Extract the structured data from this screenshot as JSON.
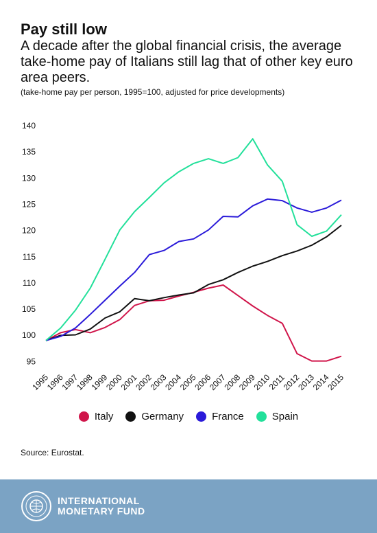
{
  "header": {
    "title": "Pay still low",
    "subtitle": "A decade after the global financial crisis, the average take-home pay of Italians still lag that of other key euro area peers.",
    "note": "(take-home pay per person, 1995=100, adjusted for price developments)"
  },
  "chart_data": {
    "type": "line",
    "x": [
      "1995",
      "1996",
      "1997",
      "1998",
      "1999",
      "2000",
      "2001",
      "2002",
      "2003",
      "2004",
      "2005",
      "2006",
      "2007",
      "2008",
      "2009",
      "2010",
      "2011",
      "2012",
      "2013",
      "2014",
      "2015"
    ],
    "yticks": [
      95,
      100,
      105,
      110,
      115,
      120,
      125,
      130,
      135,
      140
    ],
    "ylim": [
      94,
      140
    ],
    "grid": false,
    "legend_position": "bottom",
    "series": [
      {
        "name": "Italy",
        "color": "#d0154a",
        "values": [
          99,
          100.5,
          101.1,
          100.5,
          101.5,
          103,
          105.7,
          106.6,
          106.7,
          107.5,
          108.2,
          109,
          109.6,
          107.6,
          105.6,
          103.8,
          102.3,
          96.5,
          95.1,
          95.1,
          96
        ]
      },
      {
        "name": "Germany",
        "color": "#111111",
        "values": [
          99,
          100,
          100.1,
          101.2,
          103.3,
          104.5,
          107,
          106.6,
          107.2,
          107.7,
          108.1,
          109.7,
          110.6,
          112,
          113.2,
          114.1,
          115.2,
          116.1,
          117.2,
          118.8,
          121
        ]
      },
      {
        "name": "France",
        "color": "#2a1ad9",
        "values": [
          99,
          99.8,
          101.4,
          104,
          106.7,
          109.4,
          112,
          115.4,
          116.2,
          117.9,
          118.4,
          120.1,
          122.7,
          122.6,
          124.7,
          126,
          125.7,
          124.3,
          123.5,
          124.3,
          125.8
        ]
      },
      {
        "name": "Spain",
        "color": "#22e09a",
        "values": [
          99,
          101.4,
          104.8,
          109,
          114.5,
          120.1,
          123.6,
          126.3,
          129.1,
          131.2,
          132.8,
          133.7,
          132.8,
          133.9,
          137.5,
          132.5,
          129.4,
          121.1,
          118.9,
          119.9,
          123
        ]
      }
    ]
  },
  "legend": [
    {
      "label": "Italy",
      "color": "#d0154a"
    },
    {
      "label": "Germany",
      "color": "#111111"
    },
    {
      "label": "France",
      "color": "#2a1ad9"
    },
    {
      "label": "Spain",
      "color": "#22e09a"
    }
  ],
  "source": "Source: Eurostat.",
  "footer": {
    "brand_line1": "INTERNATIONAL",
    "brand_line2": "MONETARY FUND",
    "seal_icon": "imf-seal-icon"
  }
}
